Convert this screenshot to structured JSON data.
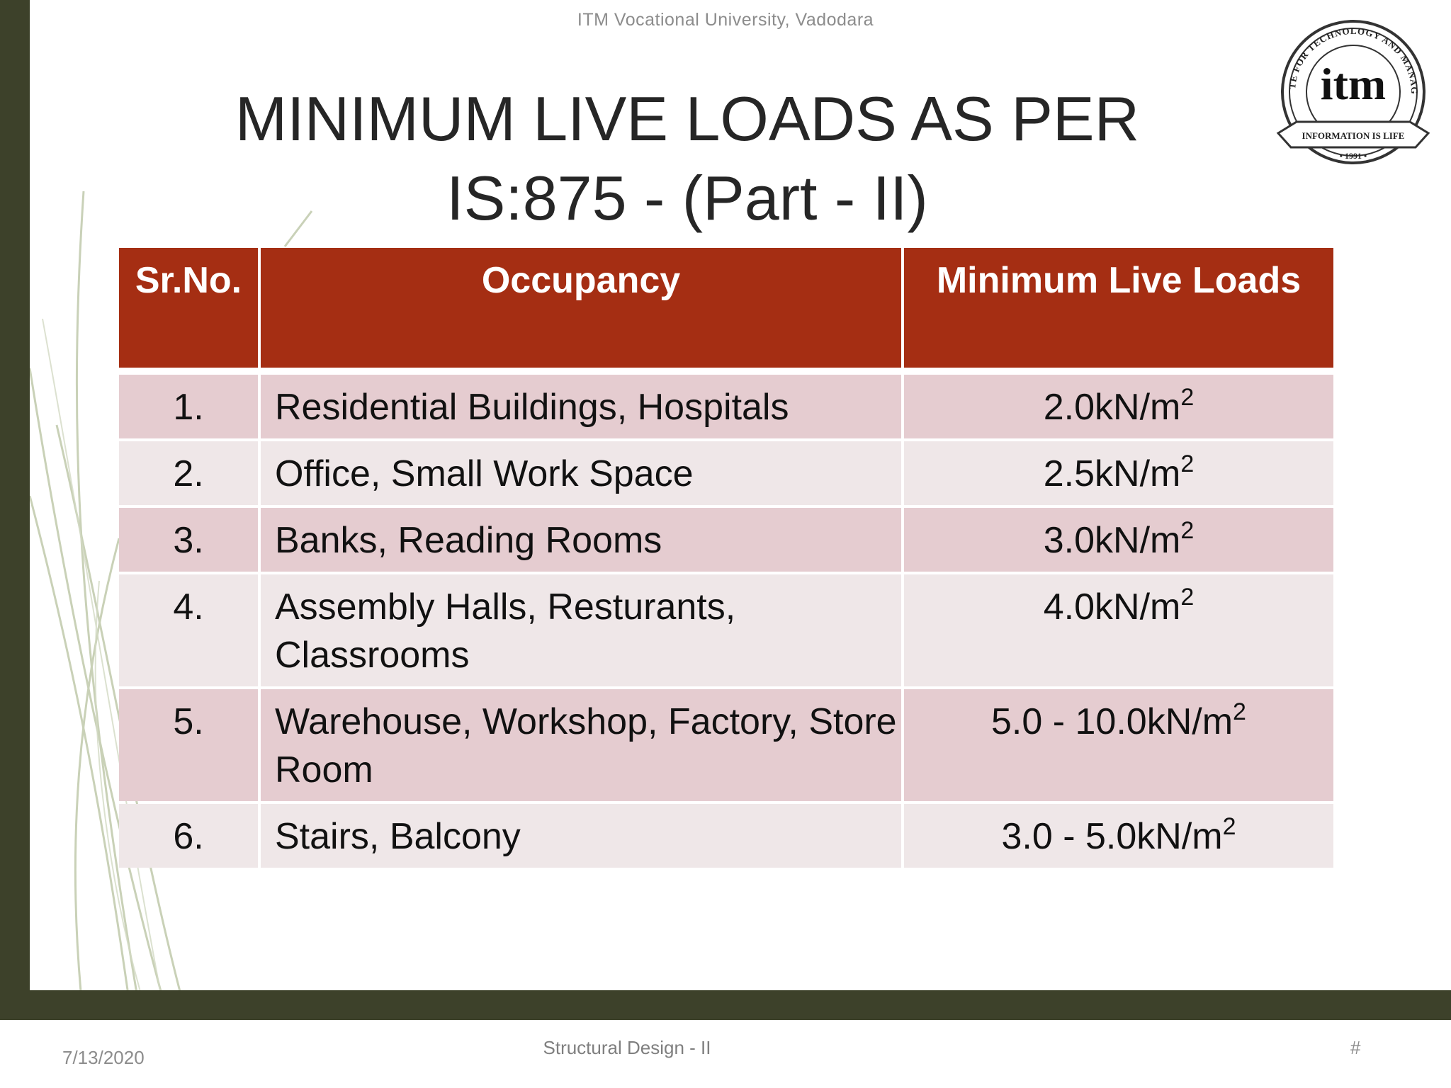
{
  "header": {
    "institution": "ITM Vocational University, Vadodara"
  },
  "title": {
    "line1": "MINIMUM LIVE LOADS AS PER",
    "line2": "IS:875 - (Part - II)"
  },
  "logo": {
    "ring_text": "INSTITUTE FOR TECHNOLOGY AND MANAGEMENT",
    "mark": "itm",
    "ribbon": "INFORMATION IS LIFE",
    "year": "• 1991 •"
  },
  "table": {
    "headers": [
      "Sr.No.",
      "Occupancy",
      "Minimum Live Loads"
    ],
    "rows": [
      {
        "no": "1.",
        "occupancy": "Residential Buildings, Hospitals",
        "load": "2.0kN/m",
        "sup": "2"
      },
      {
        "no": "2.",
        "occupancy": "Office, Small Work Space",
        "load": "2.5kN/m",
        "sup": "2"
      },
      {
        "no": "3.",
        "occupancy": "Banks, Reading Rooms",
        "load": "3.0kN/m",
        "sup": "2"
      },
      {
        "no": "4.",
        "occupancy": "Assembly Halls, Resturants, Classrooms",
        "load": "4.0kN/m",
        "sup": "2"
      },
      {
        "no": "5.",
        "occupancy": "Warehouse, Workshop, Factory, Store Room",
        "load": "5.0 - 10.0kN/m",
        "sup": "2"
      },
      {
        "no": "6.",
        "occupancy": "Stairs, Balcony",
        "load": "3.0 - 5.0kN/m",
        "sup": "2"
      }
    ]
  },
  "footer": {
    "date": "7/13/2020",
    "subject": "Structural Design - II",
    "page": "#"
  },
  "colors": {
    "header_row": "#a52e13",
    "odd_row": "#e5ccd0",
    "even_row": "#efe7e8",
    "frame": "#3d412a"
  }
}
